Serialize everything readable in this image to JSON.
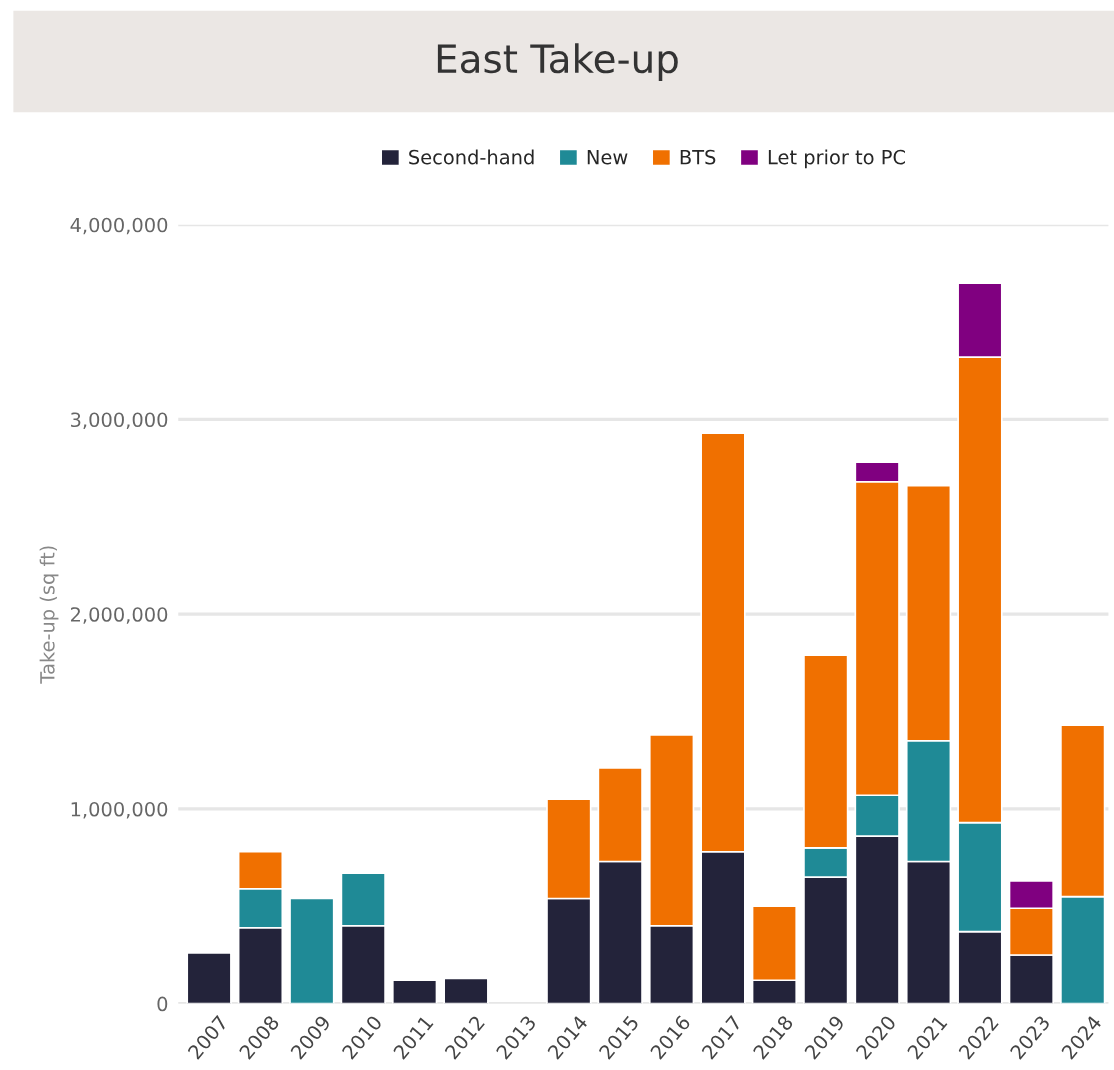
{
  "chart_data": {
    "type": "bar",
    "title": "East Take-up",
    "ylabel": "Take-up (sq ft)",
    "categories": [
      "2007",
      "2008",
      "2009",
      "2010",
      "2011",
      "2012",
      "2013",
      "2014",
      "2015",
      "2016",
      "2017",
      "2018",
      "2019",
      "2020",
      "2021",
      "2022",
      "2023",
      "2024"
    ],
    "stacked": true,
    "series": [
      {
        "name": "Second-hand",
        "color": "#23233a",
        "values": [
          260000,
          390000,
          0,
          400000,
          120000,
          130000,
          0,
          540000,
          730000,
          400000,
          780000,
          120000,
          650000,
          860000,
          730000,
          370000,
          250000,
          0
        ]
      },
      {
        "name": "New",
        "color": "#1f8a96",
        "values": [
          0,
          200000,
          540000,
          270000,
          0,
          0,
          0,
          0,
          0,
          0,
          0,
          0,
          150000,
          210000,
          620000,
          560000,
          0,
          550000
        ]
      },
      {
        "name": "BTS",
        "color": "#f07000",
        "values": [
          0,
          190000,
          0,
          0,
          0,
          0,
          0,
          510000,
          480000,
          980000,
          2150000,
          380000,
          990000,
          1610000,
          1310000,
          2390000,
          240000,
          880000
        ]
      },
      {
        "name": "Let prior to PC",
        "color": "#800080",
        "values": [
          0,
          0,
          0,
          0,
          0,
          0,
          0,
          0,
          0,
          0,
          0,
          0,
          0,
          100000,
          0,
          380000,
          140000,
          0
        ]
      }
    ],
    "ylim": [
      0,
      4000000
    ],
    "yticks": [
      {
        "value": 0,
        "label": "0"
      },
      {
        "value": 1000000,
        "label": "1,000,000"
      },
      {
        "value": 2000000,
        "label": "2,000,000"
      },
      {
        "value": 3000000,
        "label": "3,000,000"
      },
      {
        "value": 4000000,
        "label": "4,000,000"
      }
    ],
    "grid": "y",
    "legend": "top"
  }
}
